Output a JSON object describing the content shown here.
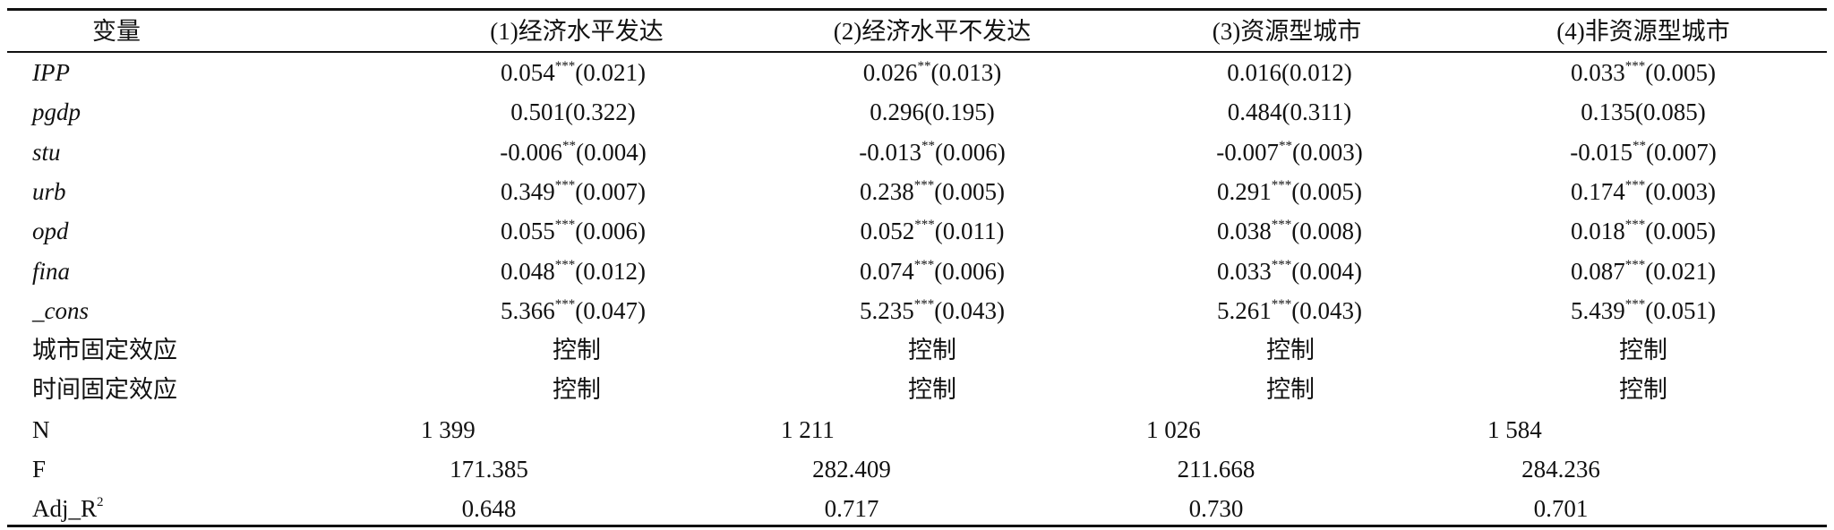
{
  "table": {
    "header": [
      "变量",
      "(1)经济水平发达",
      "(2)经济水平不发达",
      "(3)资源型城市",
      "(4)非资源型城市"
    ],
    "rows": [
      [
        {
          "text": "IPP"
        },
        {
          "coef": "0.054",
          "stars": "***",
          "se": "(0.021)"
        },
        {
          "coef": "0.026",
          "stars": "**",
          "se": "(0.013)"
        },
        {
          "coef": "0.016",
          "se": "(0.012)"
        },
        {
          "coef": "0.033",
          "stars": "***",
          "se": "(0.005)"
        }
      ],
      [
        {
          "text": "pgdp"
        },
        {
          "coef": "0.501",
          "se": "(0.322)"
        },
        {
          "coef": "0.296",
          "se": "(0.195)"
        },
        {
          "coef": "0.484",
          "se": "(0.311)"
        },
        {
          "coef": "0.135",
          "se": "(0.085)"
        }
      ],
      [
        {
          "text": "stu"
        },
        {
          "coef": "-0.006",
          "stars": "**",
          "se": "(0.004)"
        },
        {
          "coef": "-0.013",
          "stars": "**",
          "se": "(0.006)"
        },
        {
          "coef": "-0.007",
          "stars": "**",
          "se": "(0.003)"
        },
        {
          "coef": "-0.015",
          "stars": "**",
          "se": "(0.007)"
        }
      ],
      [
        {
          "text": "urb"
        },
        {
          "coef": "0.349",
          "stars": "***",
          "se": "(0.007)"
        },
        {
          "coef": "0.238",
          "stars": "***",
          "se": "(0.005)"
        },
        {
          "coef": "0.291",
          "stars": "***",
          "se": "(0.005)"
        },
        {
          "coef": "0.174",
          "stars": "***",
          "se": "(0.003)"
        }
      ],
      [
        {
          "text": "opd"
        },
        {
          "coef": "0.055",
          "stars": "***",
          "se": "(0.006)"
        },
        {
          "coef": "0.052",
          "stars": "***",
          "se": "(0.011)"
        },
        {
          "coef": "0.038",
          "stars": "***",
          "se": "(0.008)"
        },
        {
          "coef": "0.018",
          "stars": "***",
          "se": "(0.005)"
        }
      ],
      [
        {
          "text": "fina"
        },
        {
          "coef": "0.048",
          "stars": "***",
          "se": "(0.012)"
        },
        {
          "coef": "0.074",
          "stars": "***",
          "se": "(0.006)"
        },
        {
          "coef": "0.033",
          "stars": "***",
          "se": "(0.004)"
        },
        {
          "coef": "0.087",
          "stars": "***",
          "se": "(0.021)"
        }
      ],
      [
        {
          "text": "_cons"
        },
        {
          "coef": "5.366",
          "stars": "***",
          "se": "(0.047)"
        },
        {
          "coef": "5.235",
          "stars": "***",
          "se": "(0.043)"
        },
        {
          "coef": "5.261",
          "stars": "***",
          "se": "(0.043)"
        },
        {
          "coef": "5.439",
          "stars": "***",
          "se": "(0.051)"
        }
      ],
      [
        {
          "text": "城市固定效应"
        },
        {
          "text": "控制"
        },
        {
          "text": "控制"
        },
        {
          "text": "控制"
        },
        {
          "text": "控制"
        }
      ],
      [
        {
          "text": "时间固定效应"
        },
        {
          "text": "控制"
        },
        {
          "text": "控制"
        },
        {
          "text": "控制"
        },
        {
          "text": "控制"
        }
      ],
      [
        {
          "text": "N"
        },
        {
          "text": "1 399"
        },
        {
          "text": "1 211"
        },
        {
          "text": "1 026"
        },
        {
          "text": "1 584"
        }
      ],
      [
        {
          "text": "F"
        },
        {
          "text": "171.385"
        },
        {
          "text": "282.409"
        },
        {
          "text": "211.668"
        },
        {
          "text": "284.236"
        }
      ],
      [
        {
          "text": "Adj_R",
          "sup": "2"
        },
        {
          "text": "0.648"
        },
        {
          "text": "0.717"
        },
        {
          "text": "0.730"
        },
        {
          "text": "0.701"
        }
      ]
    ]
  }
}
